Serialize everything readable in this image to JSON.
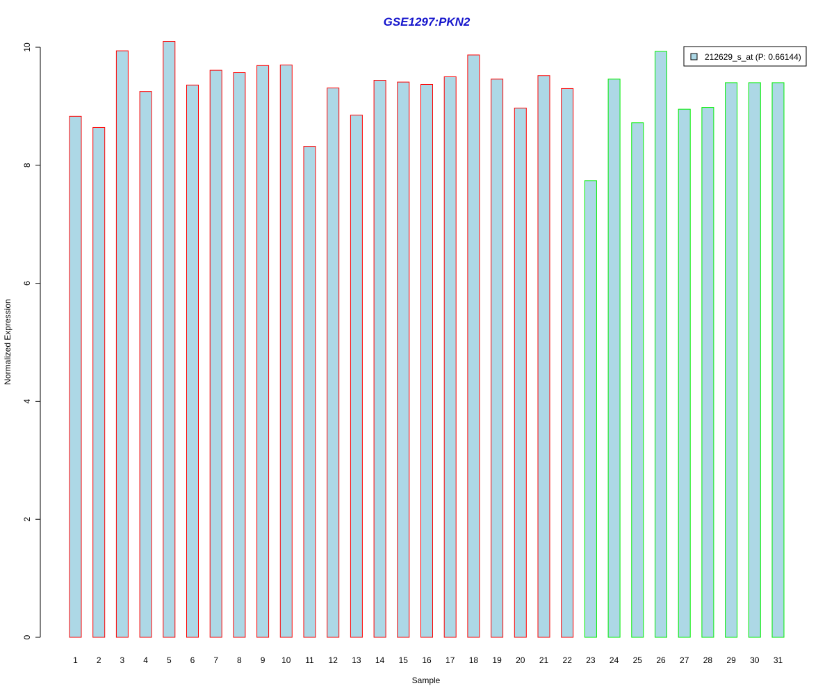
{
  "chart_data": {
    "type": "bar",
    "title": "GSE1297:PKN2",
    "xlabel": "Sample",
    "ylabel": "Normalized Expression",
    "ylim": [
      0,
      10
    ],
    "yticks": [
      "0",
      "2",
      "4",
      "6",
      "8",
      "10"
    ],
    "categories": [
      "1",
      "2",
      "3",
      "4",
      "5",
      "6",
      "7",
      "8",
      "9",
      "10",
      "11",
      "12",
      "13",
      "14",
      "15",
      "16",
      "17",
      "18",
      "19",
      "20",
      "21",
      "22",
      "23",
      "24",
      "25",
      "26",
      "27",
      "28",
      "29",
      "30",
      "31"
    ],
    "series": [
      {
        "name": "212629_s_at (P: 0.66144)",
        "values": [
          8.83,
          8.64,
          9.94,
          9.25,
          10.1,
          9.36,
          9.61,
          9.57,
          9.69,
          9.7,
          8.32,
          9.31,
          8.85,
          9.44,
          9.41,
          9.37,
          9.5,
          9.87,
          9.46,
          8.97,
          9.52,
          9.3,
          7.74,
          9.46,
          8.72,
          9.93,
          8.95,
          8.98,
          9.4,
          9.4,
          9.4
        ]
      }
    ],
    "groups": [
      "red",
      "red",
      "red",
      "red",
      "red",
      "red",
      "red",
      "red",
      "red",
      "red",
      "red",
      "red",
      "red",
      "red",
      "red",
      "red",
      "red",
      "red",
      "red",
      "red",
      "red",
      "red",
      "green",
      "green",
      "green",
      "green",
      "green",
      "green",
      "green",
      "green",
      "green"
    ],
    "legend_position": "top-right",
    "grid": false,
    "colors": {
      "bar_fill": "#add8e6",
      "group_red": "#ff0000",
      "group_green": "#00ee00",
      "title": "#1414cc"
    }
  }
}
